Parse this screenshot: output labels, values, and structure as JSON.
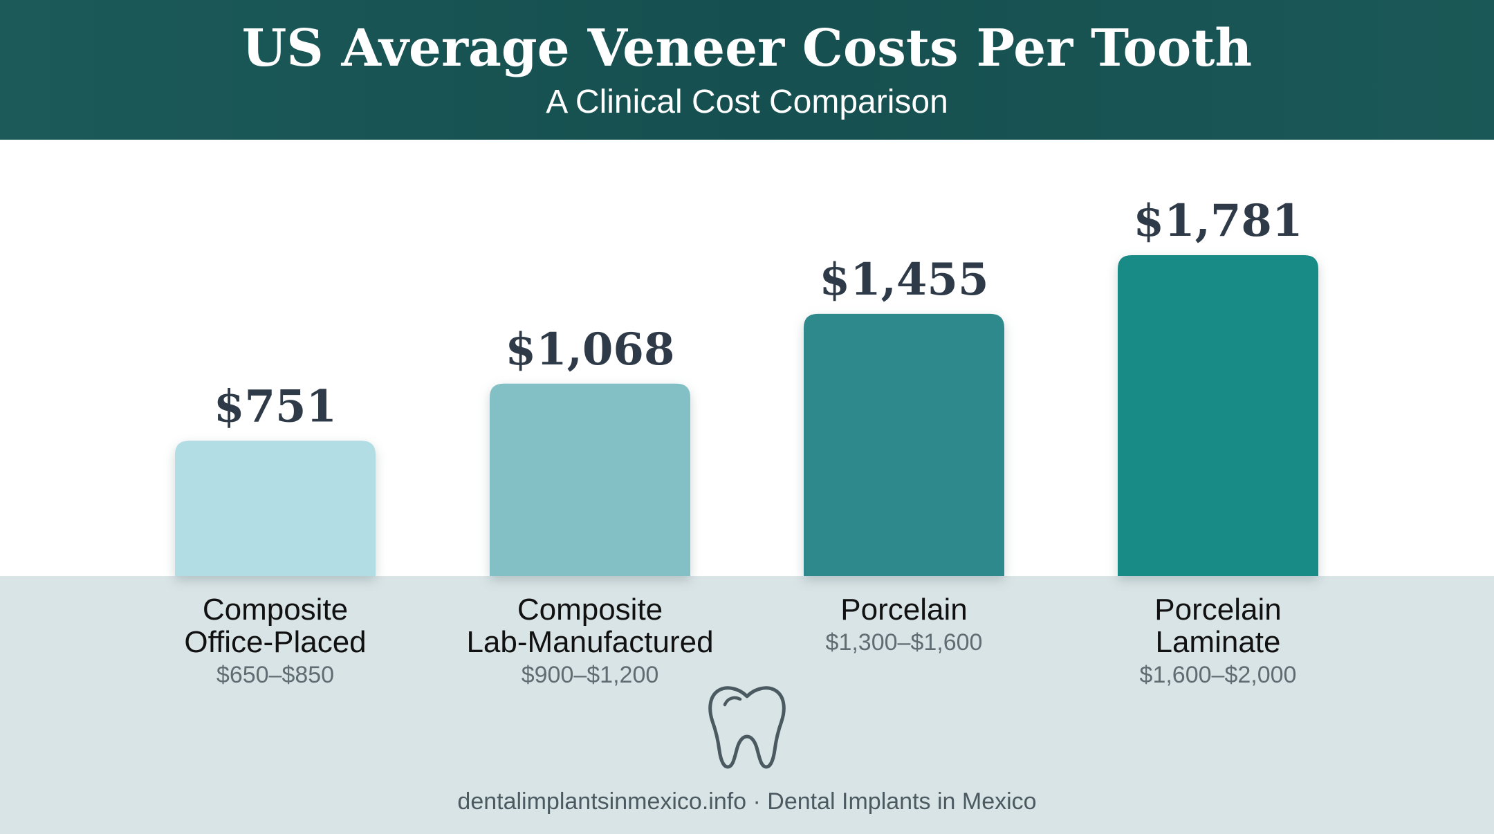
{
  "header": {
    "title": "US Average Veneer Costs Per Tooth",
    "subtitle": "A Clinical Cost Comparison"
  },
  "chart_data": {
    "type": "bar",
    "title": "US Average Veneer Costs Per Tooth",
    "subtitle": "A Clinical Cost Comparison",
    "categories": [
      [
        "Composite",
        "Office-Placed"
      ],
      [
        "Composite",
        "Lab-Manufactured"
      ],
      [
        "Porcelain"
      ],
      [
        "Porcelain",
        "Laminate"
      ]
    ],
    "values": [
      751,
      1068,
      1455,
      1781
    ],
    "value_labels": [
      "$751",
      "$1,068",
      "$1,455",
      "$1,781"
    ],
    "ranges": [
      "$650–$850",
      "$900–$1,200",
      "$1,300–$1,600",
      "$1,600–$2,000"
    ],
    "bar_colors": [
      "#b3dde5",
      "#82c0c5",
      "#2e898d",
      "#198b86"
    ],
    "ylim": [
      0,
      1781
    ],
    "grid": false,
    "legend": "none"
  },
  "footer": {
    "text": "dentalimplantsinmexico.info · Dental Implants in Mexico"
  },
  "icons": {
    "footer_icon": "tooth-icon"
  },
  "colors": {
    "header_bg": "#17504f",
    "band_bg": "#d9e4e6",
    "value_text": "#2e3a47"
  }
}
